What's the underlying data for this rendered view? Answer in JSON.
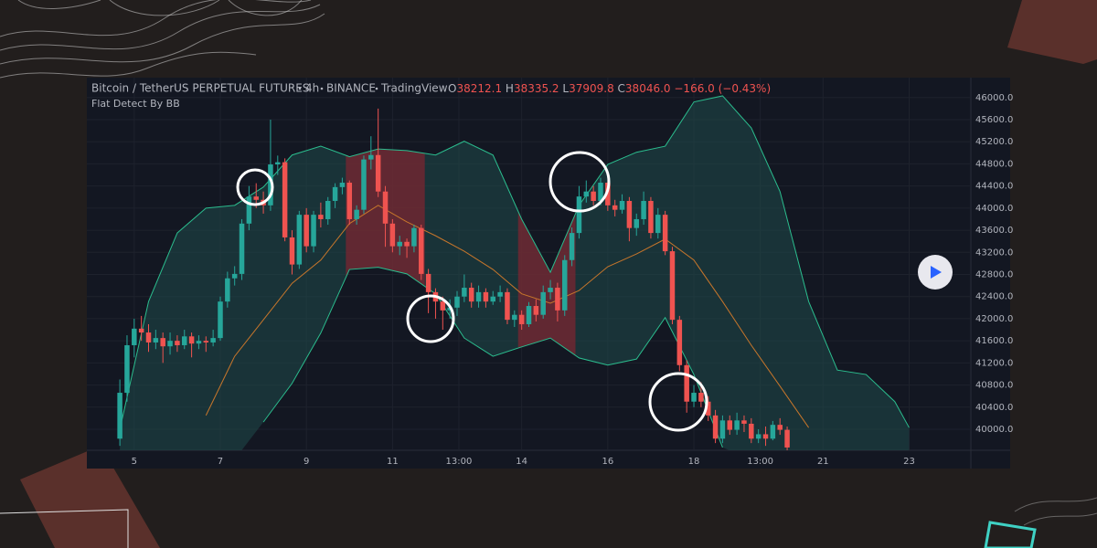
{
  "chart_data": {
    "type": "candlestick",
    "header": {
      "symbol": "Bitcoin / TetherUS PERPETUAL FUTURES",
      "interval": "4h",
      "exchange": "BINANCE",
      "source": "TradingView",
      "ohlc": [
        {
          "label": "O",
          "value": "38212.1"
        },
        {
          "label": "H",
          "value": "38335.2"
        },
        {
          "label": "L",
          "value": "37909.8"
        },
        {
          "label": "C",
          "value": "38046.0"
        }
      ],
      "change": "−166.0 (−0.43%)"
    },
    "indicator": "Flat Detect By BB",
    "up_color": "#26a69a",
    "down_color": "#ef5350",
    "band_color": "#2bbd8e",
    "middle_color": "#c7762b",
    "band_fill": "#1f4a4a",
    "flat_color": "#7a2530",
    "grid": true,
    "xlim": [
      -4.6,
      118.6
    ],
    "ylim": [
      39620,
      46360
    ],
    "xticks": [
      {
        "value": 2,
        "label": "5"
      },
      {
        "value": 14,
        "label": "7"
      },
      {
        "value": 26,
        "label": "9"
      },
      {
        "value": 38,
        "label": "11"
      },
      {
        "value": 47.25,
        "label": "13:00"
      },
      {
        "value": 56,
        "label": "14"
      },
      {
        "value": 68,
        "label": "16"
      },
      {
        "value": 80,
        "label": "18"
      },
      {
        "value": 89.25,
        "label": "13:00"
      },
      {
        "value": 98,
        "label": "21"
      },
      {
        "value": 110,
        "label": "23"
      }
    ],
    "yticks": [
      {
        "value": 40000,
        "label": "40000.0"
      },
      {
        "value": 40400,
        "label": "40400.0"
      },
      {
        "value": 40800,
        "label": "40800.0"
      },
      {
        "value": 41200,
        "label": "41200.0"
      },
      {
        "value": 41600,
        "label": "41600.0"
      },
      {
        "value": 42000,
        "label": "42000.0"
      },
      {
        "value": 42400,
        "label": "42400.0"
      },
      {
        "value": 42800,
        "label": "42800.0"
      },
      {
        "value": 43200,
        "label": "43200.0"
      },
      {
        "value": 43600,
        "label": "43600.0"
      },
      {
        "value": 44000,
        "label": "44000.0"
      },
      {
        "value": 44400,
        "label": "44400.0"
      },
      {
        "value": 44800,
        "label": "44800.0"
      },
      {
        "value": 45200,
        "label": "45200.0"
      },
      {
        "value": 45600,
        "label": "45600.0"
      },
      {
        "value": 46000,
        "label": "46000.0"
      }
    ],
    "candles": [
      [
        39830,
        40900,
        39700,
        40660
      ],
      [
        40660,
        41700,
        40500,
        41520
      ],
      [
        41520,
        42000,
        41300,
        41820
      ],
      [
        41820,
        42050,
        41600,
        41750
      ],
      [
        41750,
        41900,
        41400,
        41570
      ],
      [
        41570,
        41800,
        41450,
        41650
      ],
      [
        41650,
        41750,
        41200,
        41500
      ],
      [
        41500,
        41750,
        41350,
        41600
      ],
      [
        41600,
        41700,
        41400,
        41520
      ],
      [
        41520,
        41800,
        41450,
        41680
      ],
      [
        41680,
        41750,
        41300,
        41550
      ],
      [
        41550,
        41700,
        41450,
        41600
      ],
      [
        41600,
        41680,
        41400,
        41570
      ],
      [
        41570,
        41800,
        41500,
        41650
      ],
      [
        41650,
        42400,
        41600,
        42310
      ],
      [
        42310,
        42850,
        42200,
        42730
      ],
      [
        42730,
        42950,
        42600,
        42810
      ],
      [
        42810,
        43800,
        42700,
        43720
      ],
      [
        43720,
        44400,
        43600,
        44210
      ],
      [
        44210,
        44450,
        44000,
        44150
      ],
      [
        44150,
        44300,
        43900,
        44050
      ],
      [
        44050,
        45600,
        43950,
        44790
      ],
      [
        44790,
        44950,
        44600,
        44830
      ],
      [
        44830,
        44900,
        43400,
        43470
      ],
      [
        43470,
        43600,
        42800,
        42980
      ],
      [
        42980,
        43950,
        42900,
        43880
      ],
      [
        43880,
        44000,
        43200,
        43310
      ],
      [
        43310,
        43950,
        43200,
        43880
      ],
      [
        43880,
        44100,
        43650,
        43800
      ],
      [
        43800,
        44200,
        43700,
        44130
      ],
      [
        44130,
        44450,
        44000,
        44380
      ],
      [
        44380,
        44550,
        44250,
        44460
      ],
      [
        44460,
        44500,
        43700,
        43800
      ],
      [
        43800,
        44050,
        43700,
        43970
      ],
      [
        43970,
        44950,
        43900,
        44880
      ],
      [
        44880,
        45300,
        44700,
        44960
      ],
      [
        44960,
        45800,
        44200,
        44300
      ],
      [
        44300,
        44400,
        43300,
        43720
      ],
      [
        43720,
        43800,
        43200,
        43310
      ],
      [
        43310,
        43500,
        43150,
        43390
      ],
      [
        43390,
        43450,
        43100,
        43310
      ],
      [
        43310,
        43700,
        43200,
        43640
      ],
      [
        43640,
        43700,
        42700,
        42810
      ],
      [
        42810,
        42900,
        42100,
        42480
      ],
      [
        42480,
        42550,
        42000,
        42310
      ],
      [
        42310,
        42400,
        41800,
        42150
      ],
      [
        42150,
        42350,
        42000,
        42200
      ],
      [
        42200,
        42500,
        42050,
        42400
      ],
      [
        42400,
        42800,
        42300,
        42560
      ],
      [
        42560,
        42650,
        42200,
        42310
      ],
      [
        42310,
        42600,
        42200,
        42480
      ],
      [
        42480,
        42550,
        42200,
        42310
      ],
      [
        42310,
        42500,
        42250,
        42400
      ],
      [
        42400,
        42600,
        42300,
        42480
      ],
      [
        42480,
        42550,
        41900,
        41980
      ],
      [
        41980,
        42150,
        41850,
        42070
      ],
      [
        42070,
        42150,
        41800,
        41900
      ],
      [
        41900,
        42300,
        41850,
        42230
      ],
      [
        42230,
        42350,
        41950,
        42070
      ],
      [
        42070,
        42600,
        42000,
        42480
      ],
      [
        42480,
        42700,
        42350,
        42560
      ],
      [
        42560,
        42650,
        41950,
        42150
      ],
      [
        42150,
        43150,
        42050,
        43060
      ],
      [
        43060,
        43650,
        42950,
        43550
      ],
      [
        43550,
        44400,
        43450,
        44210
      ],
      [
        44210,
        44500,
        44100,
        44300
      ],
      [
        44300,
        44400,
        44050,
        44130
      ],
      [
        44130,
        44550,
        44050,
        44460
      ],
      [
        44460,
        44500,
        43950,
        44050
      ],
      [
        44050,
        44150,
        43850,
        43970
      ],
      [
        43970,
        44250,
        43900,
        44130
      ],
      [
        44130,
        44200,
        43400,
        43640
      ],
      [
        43640,
        43900,
        43500,
        43800
      ],
      [
        43800,
        44300,
        43700,
        44130
      ],
      [
        44130,
        44200,
        43450,
        43550
      ],
      [
        43550,
        44000,
        43450,
        43880
      ],
      [
        43880,
        43950,
        43150,
        43220
      ],
      [
        43220,
        43300,
        41900,
        41980
      ],
      [
        41980,
        42050,
        41050,
        41160
      ],
      [
        41160,
        41250,
        40300,
        40500
      ],
      [
        40500,
        40800,
        40400,
        40660
      ],
      [
        40660,
        40850,
        40400,
        40500
      ],
      [
        40500,
        40600,
        40150,
        40250
      ],
      [
        40250,
        40350,
        39750,
        39830
      ],
      [
        39830,
        40250,
        39750,
        40160
      ],
      [
        40160,
        40250,
        39900,
        39990
      ],
      [
        39990,
        40300,
        39900,
        40160
      ],
      [
        40160,
        40250,
        39950,
        40100
      ],
      [
        40100,
        40200,
        39750,
        39830
      ],
      [
        39830,
        40000,
        39750,
        39910
      ],
      [
        39910,
        40050,
        39700,
        39830
      ],
      [
        39830,
        40150,
        39800,
        40080
      ],
      [
        40080,
        40200,
        39900,
        39990
      ],
      [
        39990,
        40050,
        39600,
        39670
      ]
    ],
    "band_x": [
      0,
      4,
      8,
      12,
      16,
      20,
      24,
      28,
      32,
      36,
      40,
      44,
      48,
      52,
      56,
      60,
      64,
      68,
      72,
      76,
      80,
      84,
      88,
      92,
      96,
      100,
      104,
      108,
      110
    ],
    "upper": [
      40000,
      42310,
      43550,
      44000,
      44050,
      44380,
      44960,
      45120,
      44930,
      45070,
      45040,
      44960,
      45210,
      44960,
      43800,
      42840,
      44050,
      44790,
      45010,
      45120,
      45920,
      46030,
      45450,
      44300,
      42310,
      41070,
      40990,
      40500,
      40030
    ],
    "middle": [
      null,
      null,
      null,
      40250,
      41320,
      41980,
      42640,
      43060,
      43720,
      44050,
      43750,
      43500,
      43220,
      42890,
      42450,
      42280,
      42510,
      42940,
      43170,
      43440,
      43060,
      42310,
      41520,
      40780,
      40030,
      null,
      null,
      null,
      null
    ],
    "lower": [
      null,
      null,
      null,
      null,
      null,
      40130,
      40830,
      41740,
      42890,
      42930,
      42810,
      42450,
      41650,
      41320,
      41490,
      41650,
      41290,
      41160,
      41270,
      42020,
      40990,
      39670,
      null,
      null,
      null,
      null,
      null,
      null,
      null
    ],
    "flat_zones": [
      [
        32,
        42
      ],
      [
        56,
        63
      ]
    ]
  }
}
